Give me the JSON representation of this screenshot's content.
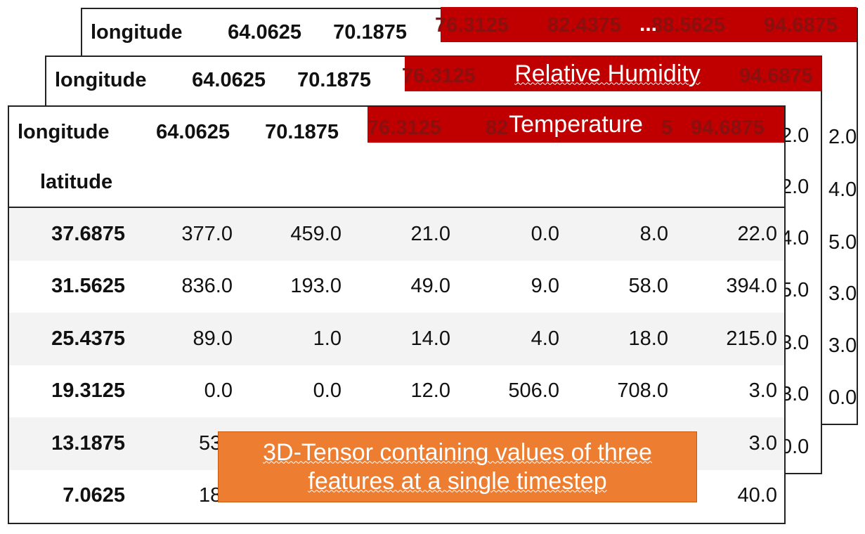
{
  "back_table": {
    "index_header": "longitude",
    "columns": [
      "64.0625",
      "70.1875",
      "76.3125",
      "82.4375",
      "88.5625",
      "94.6875"
    ],
    "ellipsis": "...",
    "edge_values": [
      "2.0",
      "4.0",
      "5.0",
      "3.0",
      "3.0",
      "0.0"
    ]
  },
  "mid_table": {
    "index_header": "longitude",
    "columns": [
      "64.0625",
      "70.1875",
      "76.3125",
      "94.6875"
    ],
    "banner_label": "Relative Humidity",
    "edge_values": [
      "2.0",
      "2.0",
      "4.0",
      "5.0",
      "3.0",
      "3.0",
      "0.0"
    ]
  },
  "front_table": {
    "index_header": "longitude",
    "columns": [
      "64.0625",
      "70.1875",
      "76.3125",
      "82",
      "5",
      "94.6875"
    ],
    "banner_label": "Temperature",
    "row_index_header": "latitude",
    "rows": [
      {
        "lat": "37.6875",
        "values": [
          "377.0",
          "459.0",
          "21.0",
          "0.0",
          "8.0",
          "22.0"
        ]
      },
      {
        "lat": "31.5625",
        "values": [
          "836.0",
          "193.0",
          "49.0",
          "9.0",
          "58.0",
          "394.0"
        ]
      },
      {
        "lat": "25.4375",
        "values": [
          "89.0",
          "1.0",
          "14.0",
          "4.0",
          "18.0",
          "215.0"
        ]
      },
      {
        "lat": "19.3125",
        "values": [
          "0.0",
          "0.0",
          "12.0",
          "506.0",
          "708.0",
          "3.0"
        ]
      },
      {
        "lat": "13.1875",
        "values": [
          "53.",
          "",
          "",
          "",
          "",
          "3.0"
        ]
      },
      {
        "lat": "7.0625",
        "values": [
          "18.",
          "",
          "",
          "",
          "",
          "40.0"
        ]
      }
    ]
  },
  "callout": {
    "line1": "3D-Tensor containing values of three",
    "line2": "features at a single timestep"
  },
  "colors": {
    "banner": "#c00000",
    "callout": "#ed7d31",
    "stripe": "#f3f3f3"
  }
}
